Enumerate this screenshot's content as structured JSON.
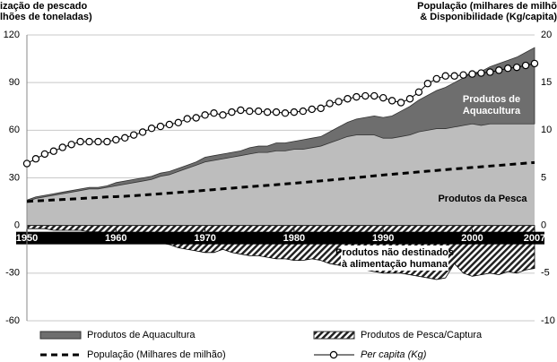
{
  "chart_data": {
    "type": "area",
    "y_title_lines": [
      "ização de pescado",
      "lhões de toneladas)"
    ],
    "y2_title_lines": [
      "População (milhares de milhõ",
      "& Disponibilidade (Kg/capita)"
    ],
    "x": [
      1950,
      1951,
      1952,
      1953,
      1954,
      1955,
      1956,
      1957,
      1958,
      1959,
      1960,
      1961,
      1962,
      1963,
      1964,
      1965,
      1966,
      1967,
      1968,
      1969,
      1970,
      1971,
      1972,
      1973,
      1974,
      1975,
      1976,
      1977,
      1978,
      1979,
      1980,
      1981,
      1982,
      1983,
      1984,
      1985,
      1986,
      1987,
      1988,
      1989,
      1990,
      1991,
      1992,
      1993,
      1994,
      1995,
      1996,
      1997,
      1998,
      1999,
      2000,
      2001,
      2002,
      2003,
      2004,
      2005,
      2006,
      2007
    ],
    "xlim": [
      1950,
      2007
    ],
    "xticks": [
      1950,
      1960,
      1970,
      1980,
      1990,
      2000,
      2007
    ],
    "ylim": [
      -60,
      120
    ],
    "yticks": [
      -60,
      -30,
      0,
      30,
      60,
      90,
      120
    ],
    "y2lim": [
      -10,
      20
    ],
    "y2ticks": [
      -10,
      -5,
      0,
      5,
      10,
      15,
      20
    ],
    "grid": true,
    "series": [
      {
        "name": "Produtos da Pesca",
        "kind": "area",
        "color": "#bdbdbd",
        "in_legend": false,
        "values": [
          15,
          17,
          18,
          19,
          20,
          21,
          22,
          23,
          23,
          24,
          25,
          26,
          27,
          28,
          29,
          31,
          32,
          34,
          36,
          38,
          40,
          41,
          42,
          43,
          44,
          45,
          46,
          46,
          47,
          47,
          48,
          48,
          49,
          50,
          52,
          54,
          56,
          57,
          57,
          57,
          55,
          55,
          56,
          57,
          59,
          60,
          61,
          61,
          62,
          63,
          64,
          63,
          64,
          64,
          64,
          64,
          64,
          64
        ]
      },
      {
        "name": "Produtos de Aquacultura",
        "kind": "stacked-area",
        "color": "#6e6e6e",
        "in_legend": true,
        "values": [
          1,
          1,
          1,
          1,
          1,
          1,
          1,
          1,
          1,
          1,
          2,
          2,
          2,
          2,
          2,
          2,
          2,
          2,
          2,
          2,
          3,
          3,
          3,
          3,
          3,
          4,
          4,
          4,
          5,
          5,
          5,
          6,
          6,
          6,
          7,
          8,
          9,
          10,
          11,
          12,
          13,
          14,
          16,
          18,
          20,
          22,
          24,
          26,
          28,
          30,
          32,
          34,
          36,
          38,
          40,
          42,
          45,
          48
        ]
      },
      {
        "name": "Produtos de Pesca/Captura",
        "kind": "hatched-area",
        "color": "#000000",
        "in_legend": true,
        "values": [
          -2,
          -2,
          -2,
          -3,
          -3,
          -3,
          -3,
          -4,
          -4,
          -5,
          -5,
          -6,
          -8,
          -9,
          -10,
          -11,
          -12,
          -14,
          -15,
          -16,
          -17,
          -17,
          -15,
          -17,
          -18,
          -19,
          -19,
          -20,
          -21,
          -21,
          -22,
          -22,
          -21,
          -22,
          -24,
          -25,
          -26,
          -27,
          -28,
          -29,
          -30,
          -30,
          -30,
          -31,
          -32,
          -33,
          -34,
          -33,
          -24,
          -30,
          -32,
          -31,
          -30,
          -31,
          -29,
          -30,
          -28,
          -27
        ]
      },
      {
        "name": "População (Milhares de milhão)",
        "kind": "dashed-line",
        "color": "#000000",
        "axis": "y2",
        "in_legend": true,
        "values": [
          2.52,
          2.58,
          2.63,
          2.68,
          2.73,
          2.78,
          2.83,
          2.88,
          2.94,
          3.0,
          3.03,
          3.07,
          3.13,
          3.19,
          3.26,
          3.33,
          3.4,
          3.47,
          3.54,
          3.62,
          3.69,
          3.77,
          3.85,
          3.92,
          4.0,
          4.07,
          4.14,
          4.21,
          4.28,
          4.36,
          4.44,
          4.52,
          4.6,
          4.68,
          4.77,
          4.85,
          4.94,
          5.03,
          5.12,
          5.21,
          5.3,
          5.38,
          5.46,
          5.54,
          5.62,
          5.7,
          5.78,
          5.86,
          5.94,
          6.01,
          6.09,
          6.16,
          6.24,
          6.31,
          6.39,
          6.46,
          6.54,
          6.61
        ]
      },
      {
        "name": "Per capita (Kg)",
        "kind": "marker-line",
        "color": "#000000",
        "axis": "y2",
        "in_legend": true,
        "values": [
          6.5,
          7.0,
          7.5,
          7.8,
          8.2,
          8.5,
          8.8,
          8.8,
          8.8,
          8.8,
          9.0,
          9.2,
          9.5,
          9.8,
          10.2,
          10.4,
          10.6,
          10.8,
          11.2,
          11.3,
          11.6,
          11.8,
          11.6,
          11.9,
          12.1,
          12.0,
          12.0,
          11.9,
          11.9,
          11.8,
          11.9,
          12.0,
          12.2,
          12.3,
          12.8,
          13.0,
          13.3,
          13.5,
          13.6,
          13.6,
          13.4,
          13.1,
          12.9,
          13.3,
          14.0,
          14.9,
          15.4,
          15.7,
          15.7,
          15.8,
          15.9,
          16.0,
          16.1,
          16.3,
          16.5,
          16.6,
          16.8,
          17.0
        ]
      }
    ],
    "annotations": [
      {
        "lines": [
          "Produtos de",
          "Aquacultura"
        ],
        "style": "white"
      },
      {
        "lines": [
          "Produtos não destinados",
          "à alimentação humana"
        ],
        "style": "boxed"
      }
    ]
  }
}
